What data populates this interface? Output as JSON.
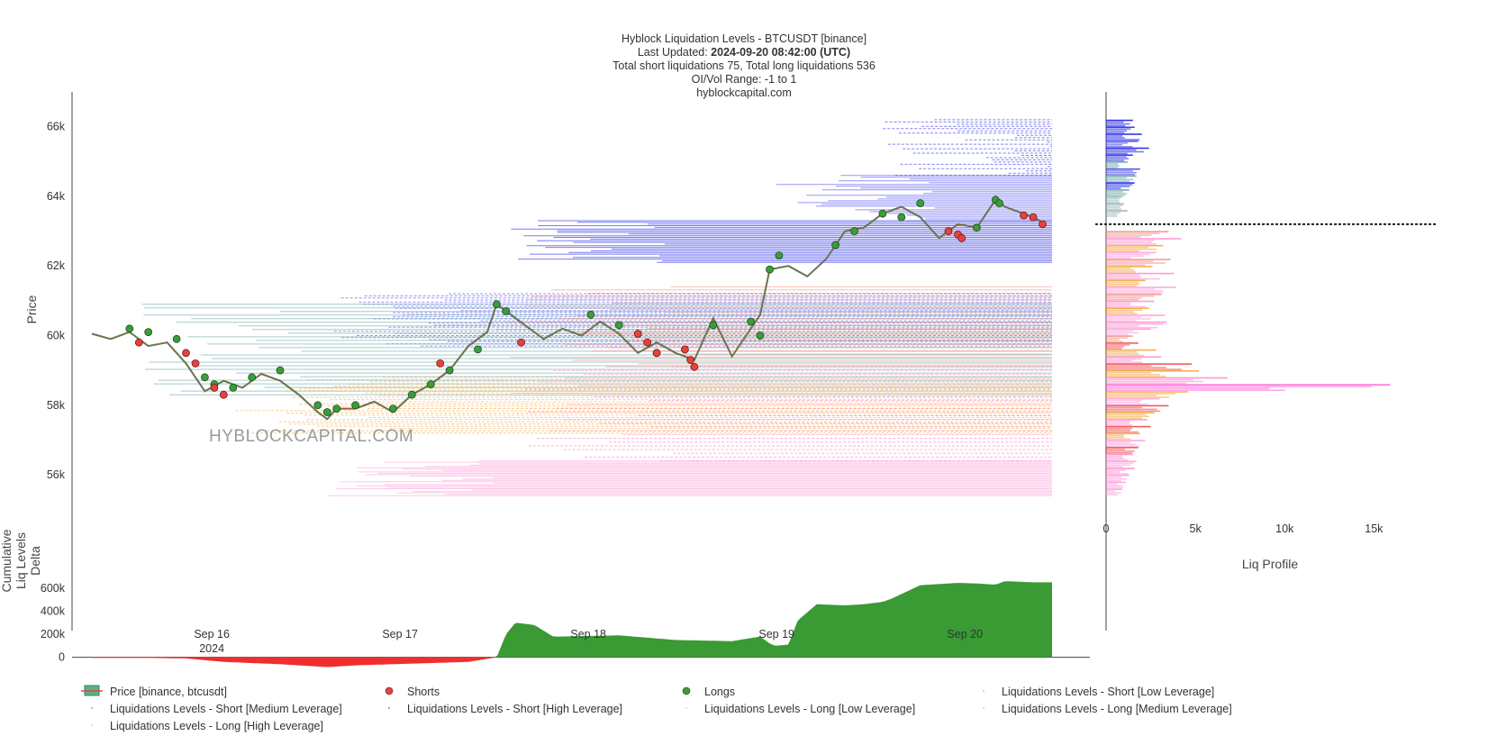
{
  "title": {
    "line1": "Hyblock Liquidation Levels - BTCUSDT [binance]",
    "updated_label": "Last Updated: ",
    "updated_value": "2024-09-20 08:42:00 (UTC)",
    "line3": "Total short liquidations 75, Total long liquidations 536",
    "line4": "OI/Vol Range: -1 to 1",
    "line5": "hyblockcapital.com"
  },
  "watermark": "HYBLOCKCAPITAL.COM",
  "chart_data": [
    {
      "type": "line",
      "panel": "price",
      "ylabel": "Price",
      "ylim": [
        54500,
        67000
      ],
      "xlim": [
        0,
        5.1
      ],
      "y_ticks": [
        {
          "value": 56000,
          "label": "56k"
        },
        {
          "value": 58000,
          "label": "58k"
        },
        {
          "value": 60000,
          "label": "60k"
        },
        {
          "value": 62000,
          "label": "62k"
        },
        {
          "value": 64000,
          "label": "64k"
        },
        {
          "value": 66000,
          "label": "66k"
        }
      ],
      "x_ticks": [
        {
          "value": 0.637,
          "label": "Sep 16",
          "sublabel": "2024"
        },
        {
          "value": 1.637,
          "label": "Sep 17",
          "sublabel": ""
        },
        {
          "value": 2.637,
          "label": "Sep 18",
          "sublabel": ""
        },
        {
          "value": 3.637,
          "label": "Sep 19",
          "sublabel": ""
        },
        {
          "value": 4.637,
          "label": "Sep 20",
          "sublabel": ""
        }
      ],
      "price": {
        "name": "Price [binance, btcusdt]",
        "color": "#2e8b57",
        "x": [
          0.0,
          0.1,
          0.2,
          0.3,
          0.4,
          0.5,
          0.6,
          0.7,
          0.8,
          0.9,
          1.0,
          1.1,
          1.2,
          1.25,
          1.3,
          1.4,
          1.5,
          1.6,
          1.7,
          1.8,
          1.9,
          2.0,
          2.1,
          2.15,
          2.2,
          2.3,
          2.4,
          2.5,
          2.6,
          2.7,
          2.8,
          2.9,
          3.0,
          3.1,
          3.2,
          3.3,
          3.4,
          3.5,
          3.55,
          3.6,
          3.7,
          3.8,
          3.9,
          4.0,
          4.1,
          4.2,
          4.3,
          4.4,
          4.5,
          4.6,
          4.7,
          4.8,
          4.85,
          4.9,
          5.0,
          5.05
        ],
        "y": [
          60050,
          59900,
          60100,
          59700,
          59800,
          59200,
          58400,
          58700,
          58500,
          58900,
          58700,
          58300,
          57800,
          57600,
          57900,
          57900,
          58100,
          57800,
          58300,
          58600,
          59000,
          59700,
          60100,
          60900,
          60700,
          60300,
          59900,
          60200,
          60000,
          60400,
          60050,
          59500,
          59800,
          59500,
          59300,
          60500,
          59400,
          60200,
          60600,
          61900,
          62000,
          61700,
          62200,
          63000,
          63100,
          63500,
          63700,
          63400,
          62800,
          63200,
          63100,
          63900,
          63700,
          63600,
          63400,
          63250
        ]
      },
      "shorts": {
        "name": "Shorts",
        "color": "#e8413c",
        "x": [
          0.25,
          0.5,
          0.55,
          0.65,
          0.7,
          1.85,
          2.28,
          2.9,
          2.95,
          3.0,
          3.15,
          3.18,
          3.2,
          4.55,
          4.6,
          4.62,
          4.95,
          5.0,
          5.05
        ],
        "y": [
          59800,
          59500,
          59200,
          58500,
          58300,
          59200,
          59800,
          60050,
          59800,
          59500,
          59600,
          59300,
          59100,
          63000,
          62900,
          62800,
          63450,
          63400,
          63200
        ]
      },
      "longs": {
        "name": "Longs",
        "color": "#3a9d3a",
        "x": [
          0.2,
          0.3,
          0.45,
          0.6,
          0.65,
          0.75,
          0.85,
          1.0,
          1.2,
          1.25,
          1.3,
          1.4,
          1.6,
          1.7,
          1.8,
          1.9,
          2.05,
          2.15,
          2.2,
          2.65,
          2.8,
          3.0,
          3.3,
          3.5,
          3.55,
          3.6,
          3.65,
          3.95,
          4.05,
          4.2,
          4.3,
          4.4,
          4.7,
          4.8,
          4.82
        ],
        "y": [
          60200,
          60100,
          59900,
          58800,
          58600,
          58500,
          58800,
          59000,
          58000,
          57800,
          57900,
          58000,
          57900,
          58300,
          58600,
          59000,
          59600,
          60900,
          60700,
          60600,
          60300,
          59500,
          60300,
          60400,
          60000,
          61900,
          62300,
          62600,
          63000,
          63500,
          63400,
          63800,
          63100,
          63900,
          63800
        ]
      },
      "liquidation_bands": [
        {
          "name": "Liquidations Levels - Short [High Leverage]",
          "color": "#0a10e8",
          "x0": 2.2,
          "ymin": 62100,
          "ymax": 63300
        },
        {
          "name": "Liquidations Levels - Short [Medium Leverage]",
          "color": "#4040f0",
          "x0": 1.25,
          "ymin": 59700,
          "ymax": 61200
        },
        {
          "name": "Liquidations Levels - Short [Medium Leverage]",
          "color": "#4040f0",
          "x0": 3.6,
          "ymin": 63300,
          "ymax": 64600
        },
        {
          "name": "Liquidations Levels - Short [High Leverage]",
          "color": "#1a1ae8",
          "x0": 4.2,
          "ymin": 64600,
          "ymax": 66200
        },
        {
          "name": "Liquidations Levels - Short [Low Leverage]",
          "color": "#5f9ea0",
          "x0": 0.25,
          "ymin": 58300,
          "ymax": 60900
        },
        {
          "name": "Liquidations Levels - Long [Low Leverage]",
          "color": "#f4a235",
          "x0": 0.7,
          "ymin": 57200,
          "ymax": 58800
        },
        {
          "name": "Liquidations Levels - Long [Medium Leverage]",
          "color": "#f28a80",
          "x0": 2.2,
          "ymin": 59100,
          "ymax": 61400
        },
        {
          "name": "Liquidations Levels - Long [High Leverage]",
          "color": "#ff6fb0",
          "x0": 2.2,
          "ymin": 56400,
          "ymax": 59100
        },
        {
          "name": "Liquidations Levels - Long [High Leverage]",
          "color": "#ff99d8",
          "x0": 1.25,
          "ymin": 55400,
          "ymax": 56400
        }
      ],
      "current_price": 63200
    },
    {
      "type": "area",
      "panel": "cumulative_delta",
      "ylabel": "Cumulative Liq Levels Delta",
      "ylim": [
        -120000,
        700000
      ],
      "y_ticks": [
        {
          "value": 0,
          "label": "0"
        },
        {
          "value": 200000,
          "label": "200k"
        },
        {
          "value": 400000,
          "label": "400k"
        },
        {
          "value": 600000,
          "label": "600k"
        }
      ],
      "positive_color": "#3a9a34",
      "negative_color": "#ef2f2f",
      "x": [
        0.0,
        0.3,
        0.5,
        0.7,
        1.0,
        1.25,
        1.4,
        1.6,
        1.8,
        2.0,
        2.15,
        2.2,
        2.25,
        2.35,
        2.45,
        2.5,
        2.8,
        3.1,
        3.4,
        3.55,
        3.6,
        3.63,
        3.7,
        3.75,
        3.85,
        4.0,
        4.1,
        4.2,
        4.25,
        4.4,
        4.6,
        4.7,
        4.8,
        4.85,
        5.0,
        5.1
      ],
      "y": [
        -5000,
        -5000,
        -10000,
        -40000,
        -60000,
        -85000,
        -70000,
        -60000,
        -50000,
        -40000,
        0,
        200000,
        300000,
        280000,
        180000,
        180000,
        190000,
        150000,
        140000,
        180000,
        120000,
        100000,
        110000,
        320000,
        460000,
        450000,
        460000,
        480000,
        510000,
        625000,
        645000,
        640000,
        630000,
        660000,
        650000,
        650000
      ]
    },
    {
      "type": "bar",
      "panel": "liq_profile",
      "xlabel": "Liq Profile",
      "orientation": "horizontal",
      "xlim": [
        0,
        17000
      ],
      "x_ticks": [
        {
          "value": 0,
          "label": "0"
        },
        {
          "value": 5000,
          "label": "5k"
        },
        {
          "value": 10000,
          "label": "10k"
        },
        {
          "value": 15000,
          "label": "15k"
        }
      ],
      "levels": [
        66100,
        65900,
        65700,
        65500,
        65300,
        65100,
        64900,
        64700,
        64500,
        64300,
        64100,
        63900,
        63700,
        63500,
        62900,
        62700,
        62500,
        62300,
        62100,
        61900,
        61700,
        61500,
        61300,
        61100,
        60900,
        60700,
        60500,
        60300,
        60100,
        59900,
        59700,
        59500,
        59300,
        59100,
        58900,
        58700,
        58500,
        58300,
        58100,
        57900,
        57700,
        57500,
        57300,
        57100,
        56900,
        56700,
        56500,
        56300,
        56100,
        55900,
        55700,
        55500
      ],
      "values": [
        1500,
        1600,
        2000,
        1800,
        2400,
        1500,
        1200,
        1900,
        1700,
        1600,
        1300,
        900,
        1000,
        1200,
        3500,
        4200,
        3200,
        2800,
        3600,
        2600,
        3800,
        2200,
        3900,
        3100,
        2700,
        2400,
        3300,
        3400,
        2500,
        1500,
        1800,
        2800,
        3100,
        4800,
        5200,
        6800,
        15900,
        4600,
        3000,
        3500,
        2700,
        2300,
        2500,
        1900,
        2200,
        1800,
        1500,
        1700,
        1600,
        1300,
        1100,
        900
      ],
      "colors": [
        "#0a10e8",
        "#1a1ae8",
        "#0a10e8",
        "#3b3bea",
        "#0a10e8",
        "#1a1ae8",
        "#5f9ea0",
        "#3b3bea",
        "#5f9ea0",
        "#0a10e8",
        "#5f9ea0",
        "#8fb0b0",
        "#8fb0b0",
        "#8fb0b0",
        "#f28a80",
        "#ff88cc",
        "#f4a235",
        "#ff99d8",
        "#f28a80",
        "#f4a235",
        "#ff88cc",
        "#f4a235",
        "#ff99d8",
        "#f28a80",
        "#ff88cc",
        "#f4a235",
        "#ff99d8",
        "#ff88cc",
        "#ff99d8",
        "#f28a80",
        "#ef4040",
        "#f4a235",
        "#ff88cc",
        "#ef4040",
        "#f4a235",
        "#ff88cc",
        "#ff5ad0",
        "#f4a235",
        "#ff99d8",
        "#ef4040",
        "#f4a235",
        "#ff88cc",
        "#ef4040",
        "#f4a235",
        "#ff99d8",
        "#ef4040",
        "#ff88cc",
        "#ff99d8",
        "#ff88cc",
        "#ff99d8",
        "#ff99d8",
        "#ff99d8"
      ],
      "current_price": 63200
    }
  ],
  "legend": [
    {
      "name": "Price [binance, btcusdt]",
      "kind": "price",
      "color": "#2e8b57"
    },
    {
      "name": "Shorts",
      "kind": "dot",
      "color": "#e8413c"
    },
    {
      "name": "Longs",
      "kind": "dot",
      "color": "#3a9d3a"
    },
    {
      "name": "Liquidations Levels - Short [Low Leverage]",
      "kind": "faint",
      "color": "#5f9ea0"
    },
    {
      "name": "Liquidations Levels - Short [Medium Leverage]",
      "kind": "faint",
      "color": "#4040f0"
    },
    {
      "name": "Liquidations Levels - Short [High Leverage]",
      "kind": "faint",
      "color": "#0a10e8"
    },
    {
      "name": "Liquidations Levels - Long [Low Leverage]",
      "kind": "faint",
      "color": "#f4a235"
    },
    {
      "name": "Liquidations Levels - Long [Medium Leverage]",
      "kind": "faint",
      "color": "#f28a80"
    },
    {
      "name": "Liquidations Levels - Long [High Leverage]",
      "kind": "faint",
      "color": "#ff88cc"
    }
  ]
}
